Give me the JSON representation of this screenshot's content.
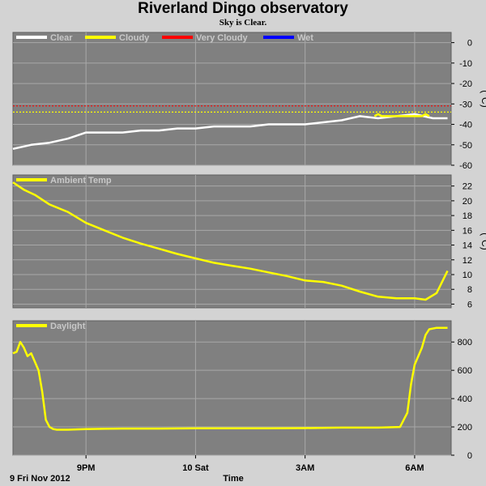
{
  "header": {
    "title": "Riverland Dingo observatory",
    "subtitle": "Sky is Clear."
  },
  "colors": {
    "background": "#d3d3d3",
    "plot_bg": "#808080",
    "grid": "#a8a8a8",
    "clear": "#ffffff",
    "cloudy": "#ffff00",
    "very_cloudy": "#ff0000",
    "wet": "#0000ff",
    "data": "#ffff00"
  },
  "chart_data": [
    {
      "type": "line",
      "name": "sky-temperature",
      "unit_label": "(°C)",
      "ylim": [
        -60,
        5
      ],
      "yticks": [
        0,
        -10,
        -20,
        -30,
        -40,
        -50,
        -60
      ],
      "xlim": [
        19.0,
        31.0
      ],
      "legend": [
        "Clear",
        "Cloudy",
        "Very Cloudy",
        "Wet"
      ],
      "thresholds": [
        {
          "name": "Very Cloudy",
          "value": -31,
          "color": "#ff0000"
        },
        {
          "name": "Cloudy",
          "value": -34,
          "color": "#ffff00"
        }
      ],
      "series": [
        {
          "name": "Clear",
          "color": "#ffffff",
          "x": [
            19.0,
            19.5,
            20.0,
            20.5,
            21.0,
            21.5,
            22.0,
            22.5,
            23.0,
            23.5,
            24.0,
            24.5,
            25.0,
            25.5,
            26.0,
            26.5,
            27.0,
            27.5,
            28.0,
            28.5,
            29.0,
            29.5,
            30.0,
            30.5,
            30.9
          ],
          "y": [
            -52,
            -50,
            -49,
            -47,
            -44,
            -44,
            -44,
            -43,
            -43,
            -42,
            -42,
            -41,
            -41,
            -41,
            -40,
            -40,
            -40,
            -39,
            -38,
            -36,
            -37,
            -36,
            -35,
            -37,
            -37
          ]
        },
        {
          "name": "Cloudy",
          "color": "#ffff00",
          "x": [
            28.9,
            29.0,
            29.1,
            30.2,
            30.3,
            30.4
          ],
          "y": [
            -36,
            -35,
            -36,
            -36,
            -35,
            -36
          ]
        }
      ]
    },
    {
      "type": "line",
      "name": "ambient-temperature",
      "unit_label": "(°C)",
      "ylim": [
        5.5,
        23.5
      ],
      "yticks": [
        22,
        20,
        18,
        16,
        14,
        12,
        10,
        8,
        6
      ],
      "xlim": [
        19.0,
        31.0
      ],
      "legend": [
        "Ambient Temp"
      ],
      "series": [
        {
          "name": "Ambient Temp",
          "color": "#ffff00",
          "x": [
            19.0,
            19.3,
            19.6,
            20.0,
            20.5,
            21.0,
            21.5,
            22.0,
            22.5,
            23.0,
            23.5,
            24.0,
            24.5,
            25.0,
            25.5,
            26.0,
            26.5,
            27.0,
            27.5,
            28.0,
            28.5,
            29.0,
            29.5,
            30.0,
            30.3,
            30.6,
            30.9
          ],
          "y": [
            22.5,
            21.5,
            20.8,
            19.5,
            18.5,
            17.0,
            16.0,
            15.0,
            14.2,
            13.5,
            12.8,
            12.2,
            11.6,
            11.2,
            10.8,
            10.3,
            9.8,
            9.2,
            9.0,
            8.5,
            7.7,
            7.0,
            6.8,
            6.8,
            6.6,
            7.5,
            10.5
          ]
        }
      ]
    },
    {
      "type": "line",
      "name": "daylight",
      "ylim": [
        0,
        950
      ],
      "yticks": [
        800,
        600,
        400,
        200,
        0
      ],
      "xlim": [
        19.0,
        31.0
      ],
      "x_tick_positions": [
        21.0,
        24.0,
        27.0,
        30.0
      ],
      "x_tick_labels": [
        "9PM",
        "10 Sat",
        "3AM",
        "6AM"
      ],
      "x_left_label": "9 Fri Nov 2012",
      "xlabel": "Time",
      "legend": [
        "Daylight"
      ],
      "series": [
        {
          "name": "Daylight",
          "color": "#ffff00",
          "x": [
            19.0,
            19.1,
            19.2,
            19.3,
            19.4,
            19.5,
            19.6,
            19.7,
            19.8,
            19.9,
            20.0,
            20.1,
            20.2,
            20.3,
            20.5,
            21.0,
            22.0,
            23.0,
            24.0,
            25.0,
            26.0,
            27.0,
            28.0,
            29.0,
            29.6,
            29.8,
            29.9,
            30.0,
            30.1,
            30.2,
            30.3,
            30.4,
            30.6,
            30.9
          ],
          "y": [
            720,
            730,
            800,
            760,
            700,
            720,
            660,
            600,
            450,
            250,
            200,
            185,
            180,
            180,
            180,
            185,
            188,
            188,
            190,
            190,
            190,
            192,
            195,
            195,
            200,
            300,
            500,
            640,
            700,
            760,
            850,
            890,
            900,
            900
          ]
        }
      ]
    }
  ]
}
